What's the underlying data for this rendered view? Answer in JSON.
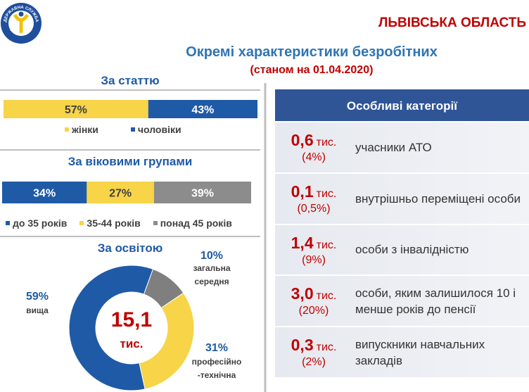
{
  "header": {
    "logo_top": "ДЕРЖАВНА СЛУЖБА",
    "logo_bottom": "ЗАЙНЯТОСТІ",
    "region": "ЛЬВІВСЬКА ОБЛАСТЬ",
    "title": "Окремі характеристики безробітних",
    "subtitle": "(станом на 01.04.2020)"
  },
  "chart_data": [
    {
      "type": "stacked-bar",
      "title": "За статтю",
      "xlim": [
        0,
        100
      ],
      "series": [
        {
          "name": "жінки",
          "color": "#f7d448",
          "text_color": "#404040",
          "values": [
            57
          ],
          "value_labels": [
            "57%"
          ]
        },
        {
          "name": "чоловіки",
          "color": "#1f5aa6",
          "text_color": "#ffffff",
          "values": [
            43
          ],
          "value_labels": [
            "43%"
          ]
        }
      ]
    },
    {
      "type": "stacked-bar",
      "title": "За віковими групами",
      "xlim": [
        0,
        100
      ],
      "series": [
        {
          "name": "до 35 років",
          "color": "#1f5aa6",
          "text_color": "#ffffff",
          "values": [
            34
          ],
          "value_labels": [
            "34%"
          ]
        },
        {
          "name": "35-44 років",
          "color": "#f7d448",
          "text_color": "#404040",
          "values": [
            27
          ],
          "value_labels": [
            "27%"
          ]
        },
        {
          "name": "понад 45 років",
          "color": "#8c8c8c",
          "text_color": "#ffffff",
          "values": [
            39
          ],
          "value_labels": [
            "39%"
          ]
        }
      ]
    },
    {
      "type": "donut",
      "title": "За освітою",
      "center_value": "15,1",
      "center_unit": "тис.",
      "categories": [
        "загальна\nсередня",
        "професійно\n-технічна",
        "вища"
      ],
      "values": [
        10,
        31,
        59
      ],
      "value_labels": [
        "10%",
        "31%",
        "59%"
      ],
      "colors": [
        "#7f7f7f",
        "#f7d448",
        "#1f5aa6"
      ]
    }
  ],
  "special_categories": {
    "title": "Особливі категорії",
    "rows": [
      {
        "value": "0,6",
        "unit": "тис.",
        "share": "(4%)",
        "label": "учасники АТО"
      },
      {
        "value": "0,1",
        "unit": "тис.",
        "share": "(0,5%)",
        "label": "внутрішньо переміщені особи"
      },
      {
        "value": "1,4",
        "unit": "тис.",
        "share": "(9%)",
        "label": "особи з інвалідністю"
      },
      {
        "value": "3,0",
        "unit": "тис.",
        "share": "(20%)",
        "label": "особи, яким залишилося 10 і менше років до пенсії"
      },
      {
        "value": "0,3",
        "unit": "тис.",
        "share": "(2%)",
        "label": "випускники навчальних закладів"
      }
    ]
  }
}
